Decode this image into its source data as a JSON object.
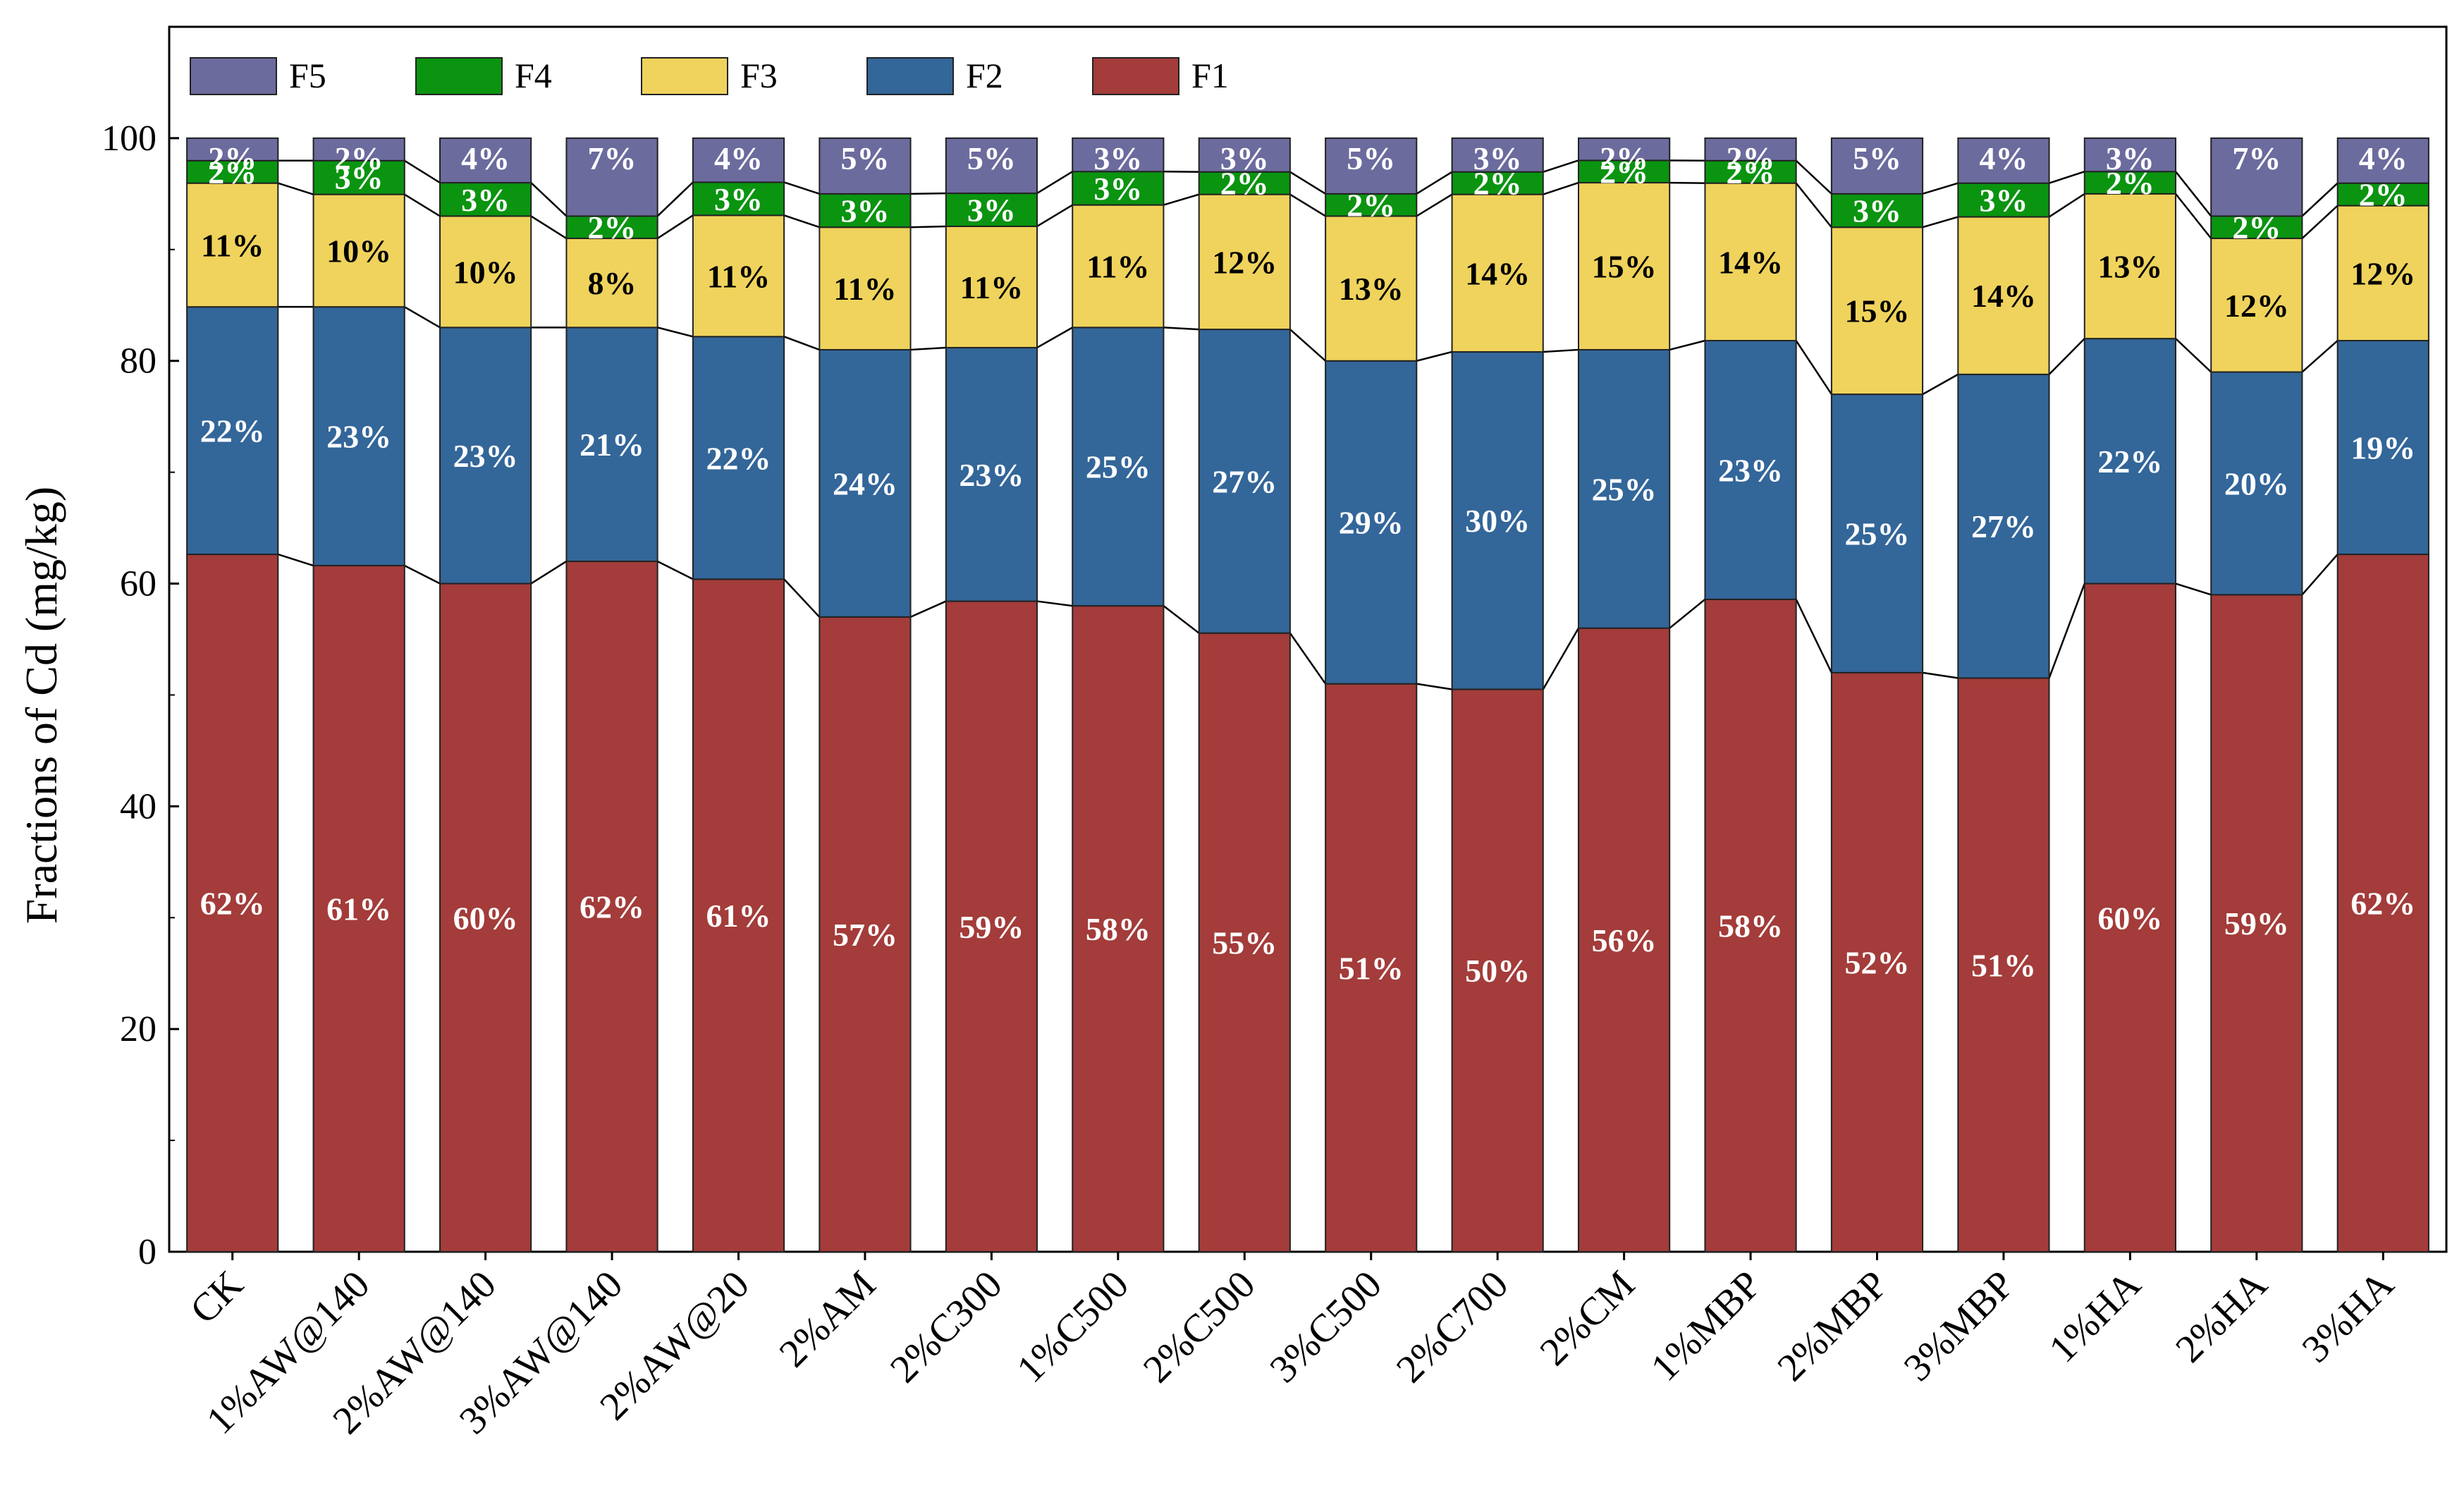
{
  "chart_data": {
    "type": "bar",
    "stacked": true,
    "title": "",
    "xlabel": "",
    "ylabel": "Fractions of Cd (mg/kg)",
    "ylim": [
      0,
      110
    ],
    "yticks": [
      0,
      20,
      40,
      60,
      80,
      100
    ],
    "grid": false,
    "legend_position": "top-left",
    "categories": [
      "CK",
      "1%AW@140",
      "2%AW@140",
      "3%AW@140",
      "2%AW@20",
      "2%AM",
      "2%C300",
      "1%C500",
      "2%C500",
      "3%C500",
      "2%C700",
      "2%CM",
      "1%MBP",
      "2%MBP",
      "3%MBP",
      "1%HA",
      "2%HA",
      "3%HA"
    ],
    "series": [
      {
        "name": "F1",
        "color": "#a33c3a",
        "values": [
          62,
          61,
          60,
          62,
          61,
          57,
          59,
          58,
          55,
          51,
          50,
          56,
          58,
          52,
          51,
          60,
          59,
          62
        ],
        "labels": [
          "62%",
          "61%",
          "60%",
          "62%",
          "61%",
          "57%",
          "59%",
          "58%",
          "55%",
          "51%",
          "50%",
          "56%",
          "58%",
          "52%",
          "51%",
          "60%",
          "59%",
          "62%"
        ]
      },
      {
        "name": "F2",
        "color": "#336699",
        "values": [
          22,
          23,
          23,
          21,
          22,
          24,
          23,
          25,
          27,
          29,
          30,
          25,
          23,
          25,
          27,
          22,
          20,
          19
        ],
        "labels": [
          "22%",
          "23%",
          "23%",
          "21%",
          "22%",
          "24%",
          "23%",
          "25%",
          "27%",
          "29%",
          "30%",
          "25%",
          "23%",
          "25%",
          "27%",
          "22%",
          "20%",
          "19%"
        ]
      },
      {
        "name": "F3",
        "color": "#efd35c",
        "values": [
          11,
          10,
          10,
          8,
          11,
          11,
          11,
          11,
          12,
          13,
          14,
          15,
          14,
          15,
          14,
          13,
          12,
          12
        ],
        "labels": [
          "11%",
          "10%",
          "10%",
          "8%",
          "11%",
          "11%",
          "11%",
          "11%",
          "12%",
          "13%",
          "14%",
          "15%",
          "14%",
          "15%",
          "14%",
          "13%",
          "12%",
          "12%"
        ]
      },
      {
        "name": "F4",
        "color": "#0a9410",
        "values": [
          2,
          3,
          3,
          2,
          3,
          3,
          3,
          3,
          2,
          2,
          2,
          2,
          2,
          3,
          3,
          2,
          2,
          2
        ],
        "labels": [
          "2%",
          "3%",
          "3%",
          "2%",
          "3%",
          "3%",
          "3%",
          "3%",
          "2%",
          "2%",
          "2%",
          "2%",
          "2%",
          "3%",
          "3%",
          "2%",
          "2%",
          "2%"
        ]
      },
      {
        "name": "F5",
        "color": "#6c6b9e",
        "values": [
          2,
          2,
          4,
          7,
          4,
          5,
          5,
          3,
          3,
          5,
          3,
          2,
          2,
          5,
          4,
          3,
          7,
          4
        ],
        "labels": [
          "2%",
          "2%",
          "4%",
          "7%",
          "4%",
          "5%",
          "5%",
          "3%",
          "3%",
          "5%",
          "3%",
          "2%",
          "2%",
          "5%",
          "4%",
          "3%",
          "7%",
          "4%"
        ]
      }
    ],
    "legend_order": [
      "F5",
      "F4",
      "F3",
      "F2",
      "F1"
    ]
  }
}
